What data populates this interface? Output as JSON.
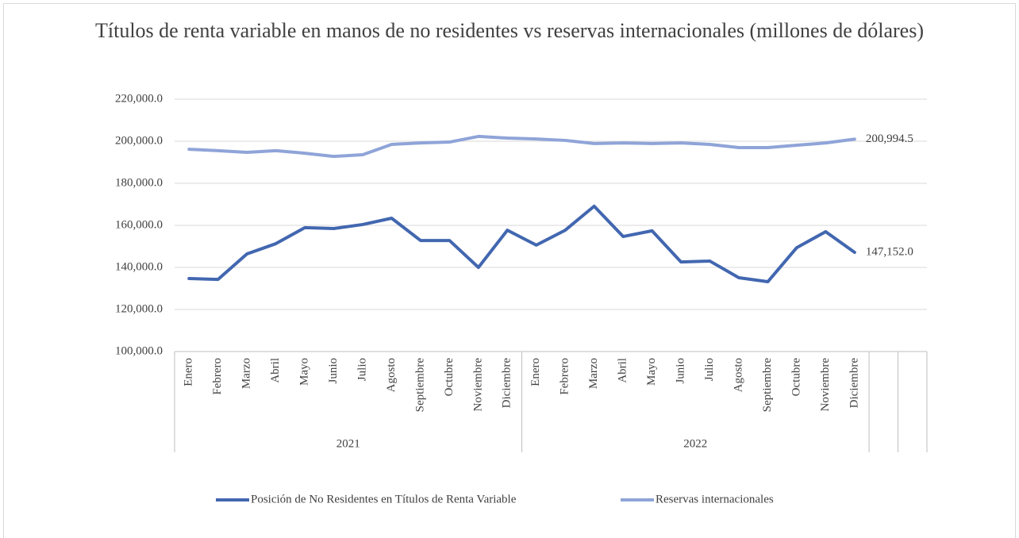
{
  "chart_data": {
    "type": "line",
    "title": "Títulos de renta variable  en manos de no residentes vs reservas internacionales (millones de dólares)",
    "categories": [
      "Enero",
      "Febrero",
      "Marzo",
      "Abril",
      "Mayo",
      "Junio",
      "Julio",
      "Agosto",
      "Septiembre",
      "Octubre",
      "Noviembre",
      "Diciembre",
      "Enero",
      "Febrero",
      "Marzo",
      "Abril",
      "Mayo",
      "Junio",
      "Julio",
      "Agosto",
      "Septiembre",
      "Octubre",
      "Noviembre",
      "Diciembre",
      null,
      null
    ],
    "category_groups": [
      {
        "label": "2021",
        "count": 12
      },
      {
        "label": "2022",
        "count": 12
      }
    ],
    "series": [
      {
        "name": "Posición de No Residentes en Títulos de Renta Variable",
        "color": "#4267b0",
        "values": [
          134700,
          134300,
          146400,
          151300,
          158900,
          158500,
          160400,
          163400,
          152800,
          152800,
          140000,
          157700,
          150600,
          157700,
          169100,
          154700,
          157400,
          142600,
          143000,
          135100,
          133200,
          149400,
          157000,
          147152.0,
          null,
          null
        ],
        "value_labels": [
          null,
          null,
          null,
          null,
          null,
          null,
          null,
          null,
          null,
          null,
          null,
          null,
          null,
          null,
          null,
          null,
          null,
          null,
          null,
          null,
          null,
          null,
          null,
          "147,152.0",
          null,
          null
        ]
      },
      {
        "name": "Reservas internacionales",
        "color": "#8fa4d8",
        "values": [
          196200,
          195500,
          194700,
          195500,
          194300,
          192800,
          193600,
          198500,
          199200,
          199600,
          202300,
          201500,
          201100,
          200400,
          198900,
          199200,
          198900,
          199200,
          198500,
          197000,
          197000,
          198100,
          199200,
          200994.5,
          null,
          null
        ],
        "value_labels": [
          null,
          null,
          null,
          null,
          null,
          null,
          null,
          null,
          null,
          null,
          null,
          null,
          null,
          null,
          null,
          null,
          null,
          null,
          null,
          null,
          null,
          null,
          null,
          "200,994.5",
          null,
          null
        ]
      }
    ],
    "ylim": [
      100000,
      220000
    ],
    "yticks": [
      {
        "value": 100000,
        "label": "100,000.0"
      },
      {
        "value": 120000,
        "label": "120,000.0"
      },
      {
        "value": 140000,
        "label": "140,000.0"
      },
      {
        "value": 160000,
        "label": "160,000.0"
      },
      {
        "value": 180000,
        "label": "180,000.0"
      },
      {
        "value": 200000,
        "label": "200,000.0"
      },
      {
        "value": 220000,
        "label": "220,000.0"
      }
    ],
    "grid": true,
    "legend": "bottom"
  }
}
